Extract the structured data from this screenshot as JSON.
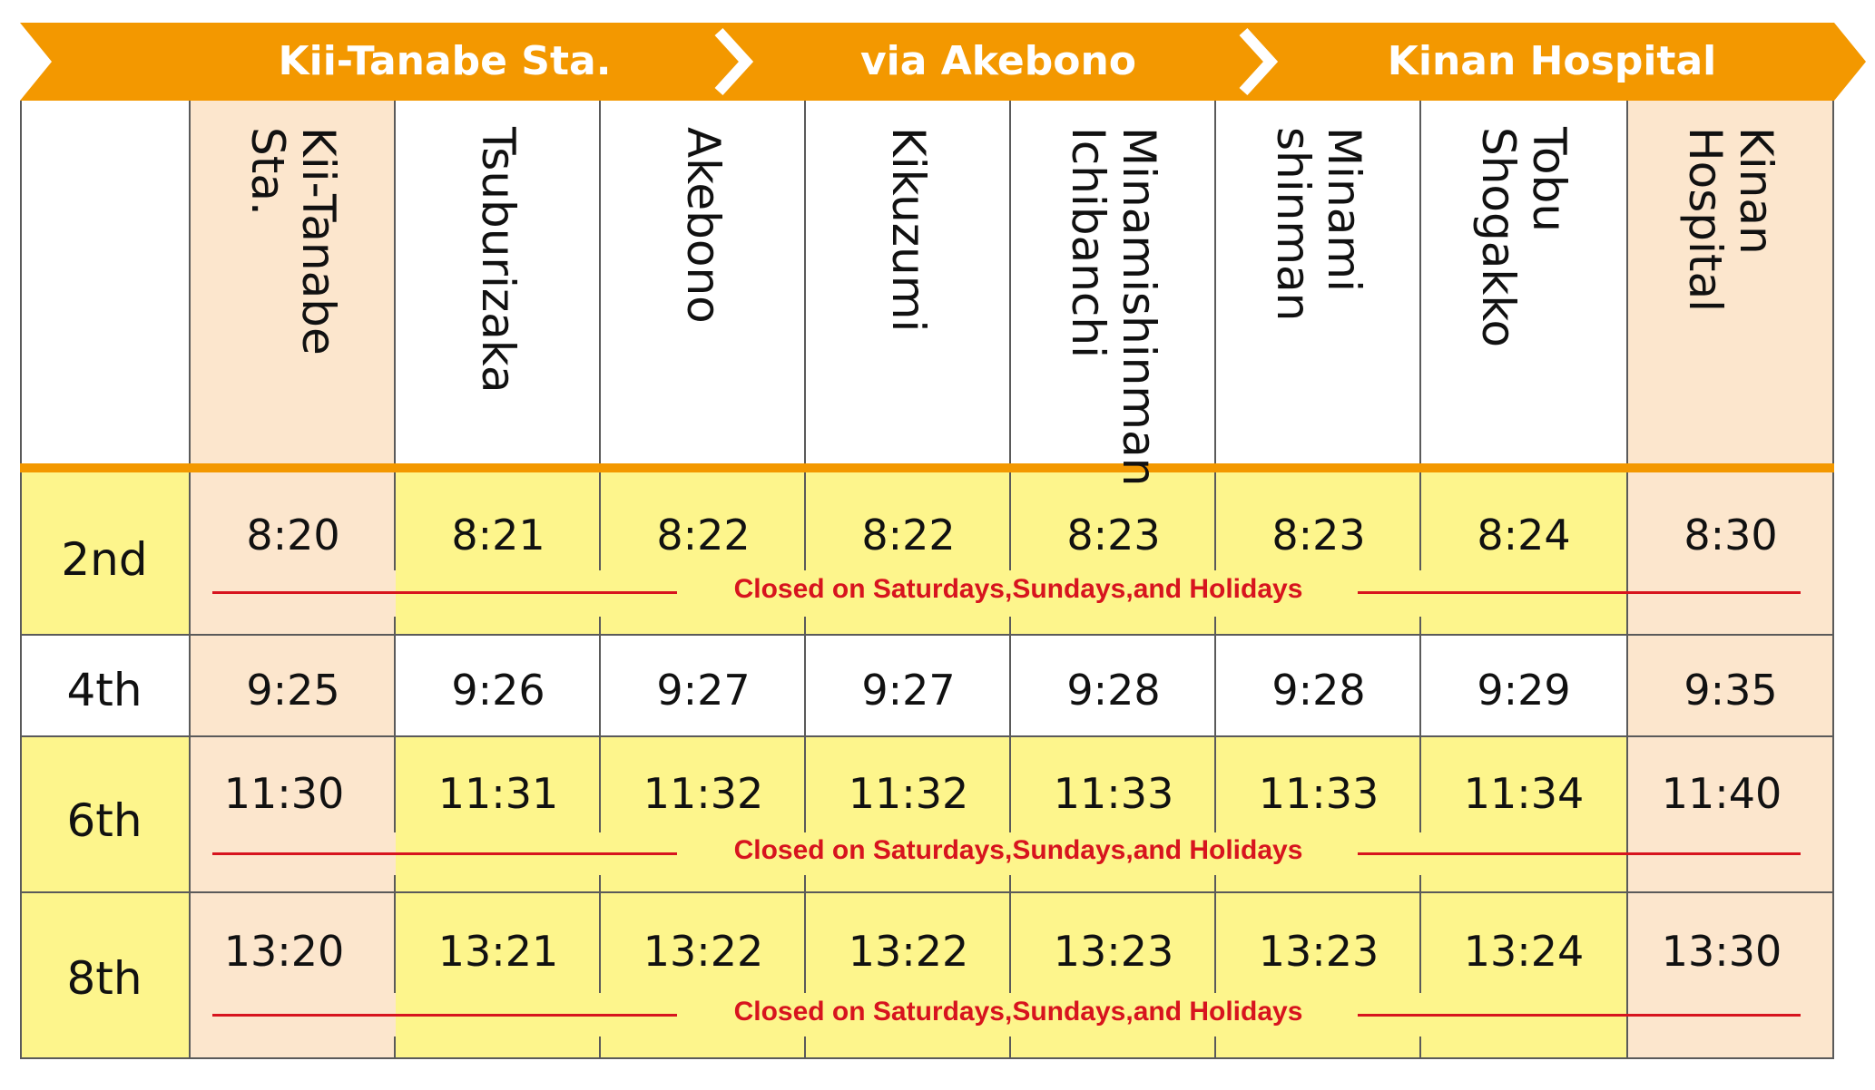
{
  "banner": {
    "segments": [
      "Kii-Tanabe Sta.",
      "via Akebono",
      "Kinan Hospital"
    ],
    "color": "#f39800"
  },
  "stops": [
    "Kii-Tanabe Sta.",
    "Tsuburizaka",
    "Akebono",
    "Kikuzumi",
    "Minamishinman\nIchibanchi",
    "Minami\nshinman",
    "Tobu Shogakko",
    "Kinan Hospital"
  ],
  "trips": [
    {
      "label": "2nd",
      "times": [
        "8:20",
        "8:21",
        "8:22",
        "8:22",
        "8:23",
        "8:23",
        "8:24",
        "8:30"
      ],
      "note": "Closed on Saturdays,Sundays,and Holidays"
    },
    {
      "label": "4th",
      "times": [
        "9:25",
        "9:26",
        "9:27",
        "9:27",
        "9:28",
        "9:28",
        "9:29",
        "9:35"
      ],
      "note": ""
    },
    {
      "label": "6th",
      "times": [
        "11:30",
        "11:31",
        "11:32",
        "11:32",
        "11:33",
        "11:33",
        "11:34",
        "11:40"
      ],
      "note": "Closed on Saturdays,Sundays,and Holidays"
    },
    {
      "label": "8th",
      "times": [
        "13:20",
        "13:21",
        "13:22",
        "13:22",
        "13:23",
        "13:23",
        "13:24",
        "13:30"
      ],
      "note": "Closed on Saturdays,Sundays,and Holidays"
    }
  ],
  "colors": {
    "peach": "#fce6cd",
    "yellow": "#fdf58c",
    "closed_red": "#d7141e"
  }
}
